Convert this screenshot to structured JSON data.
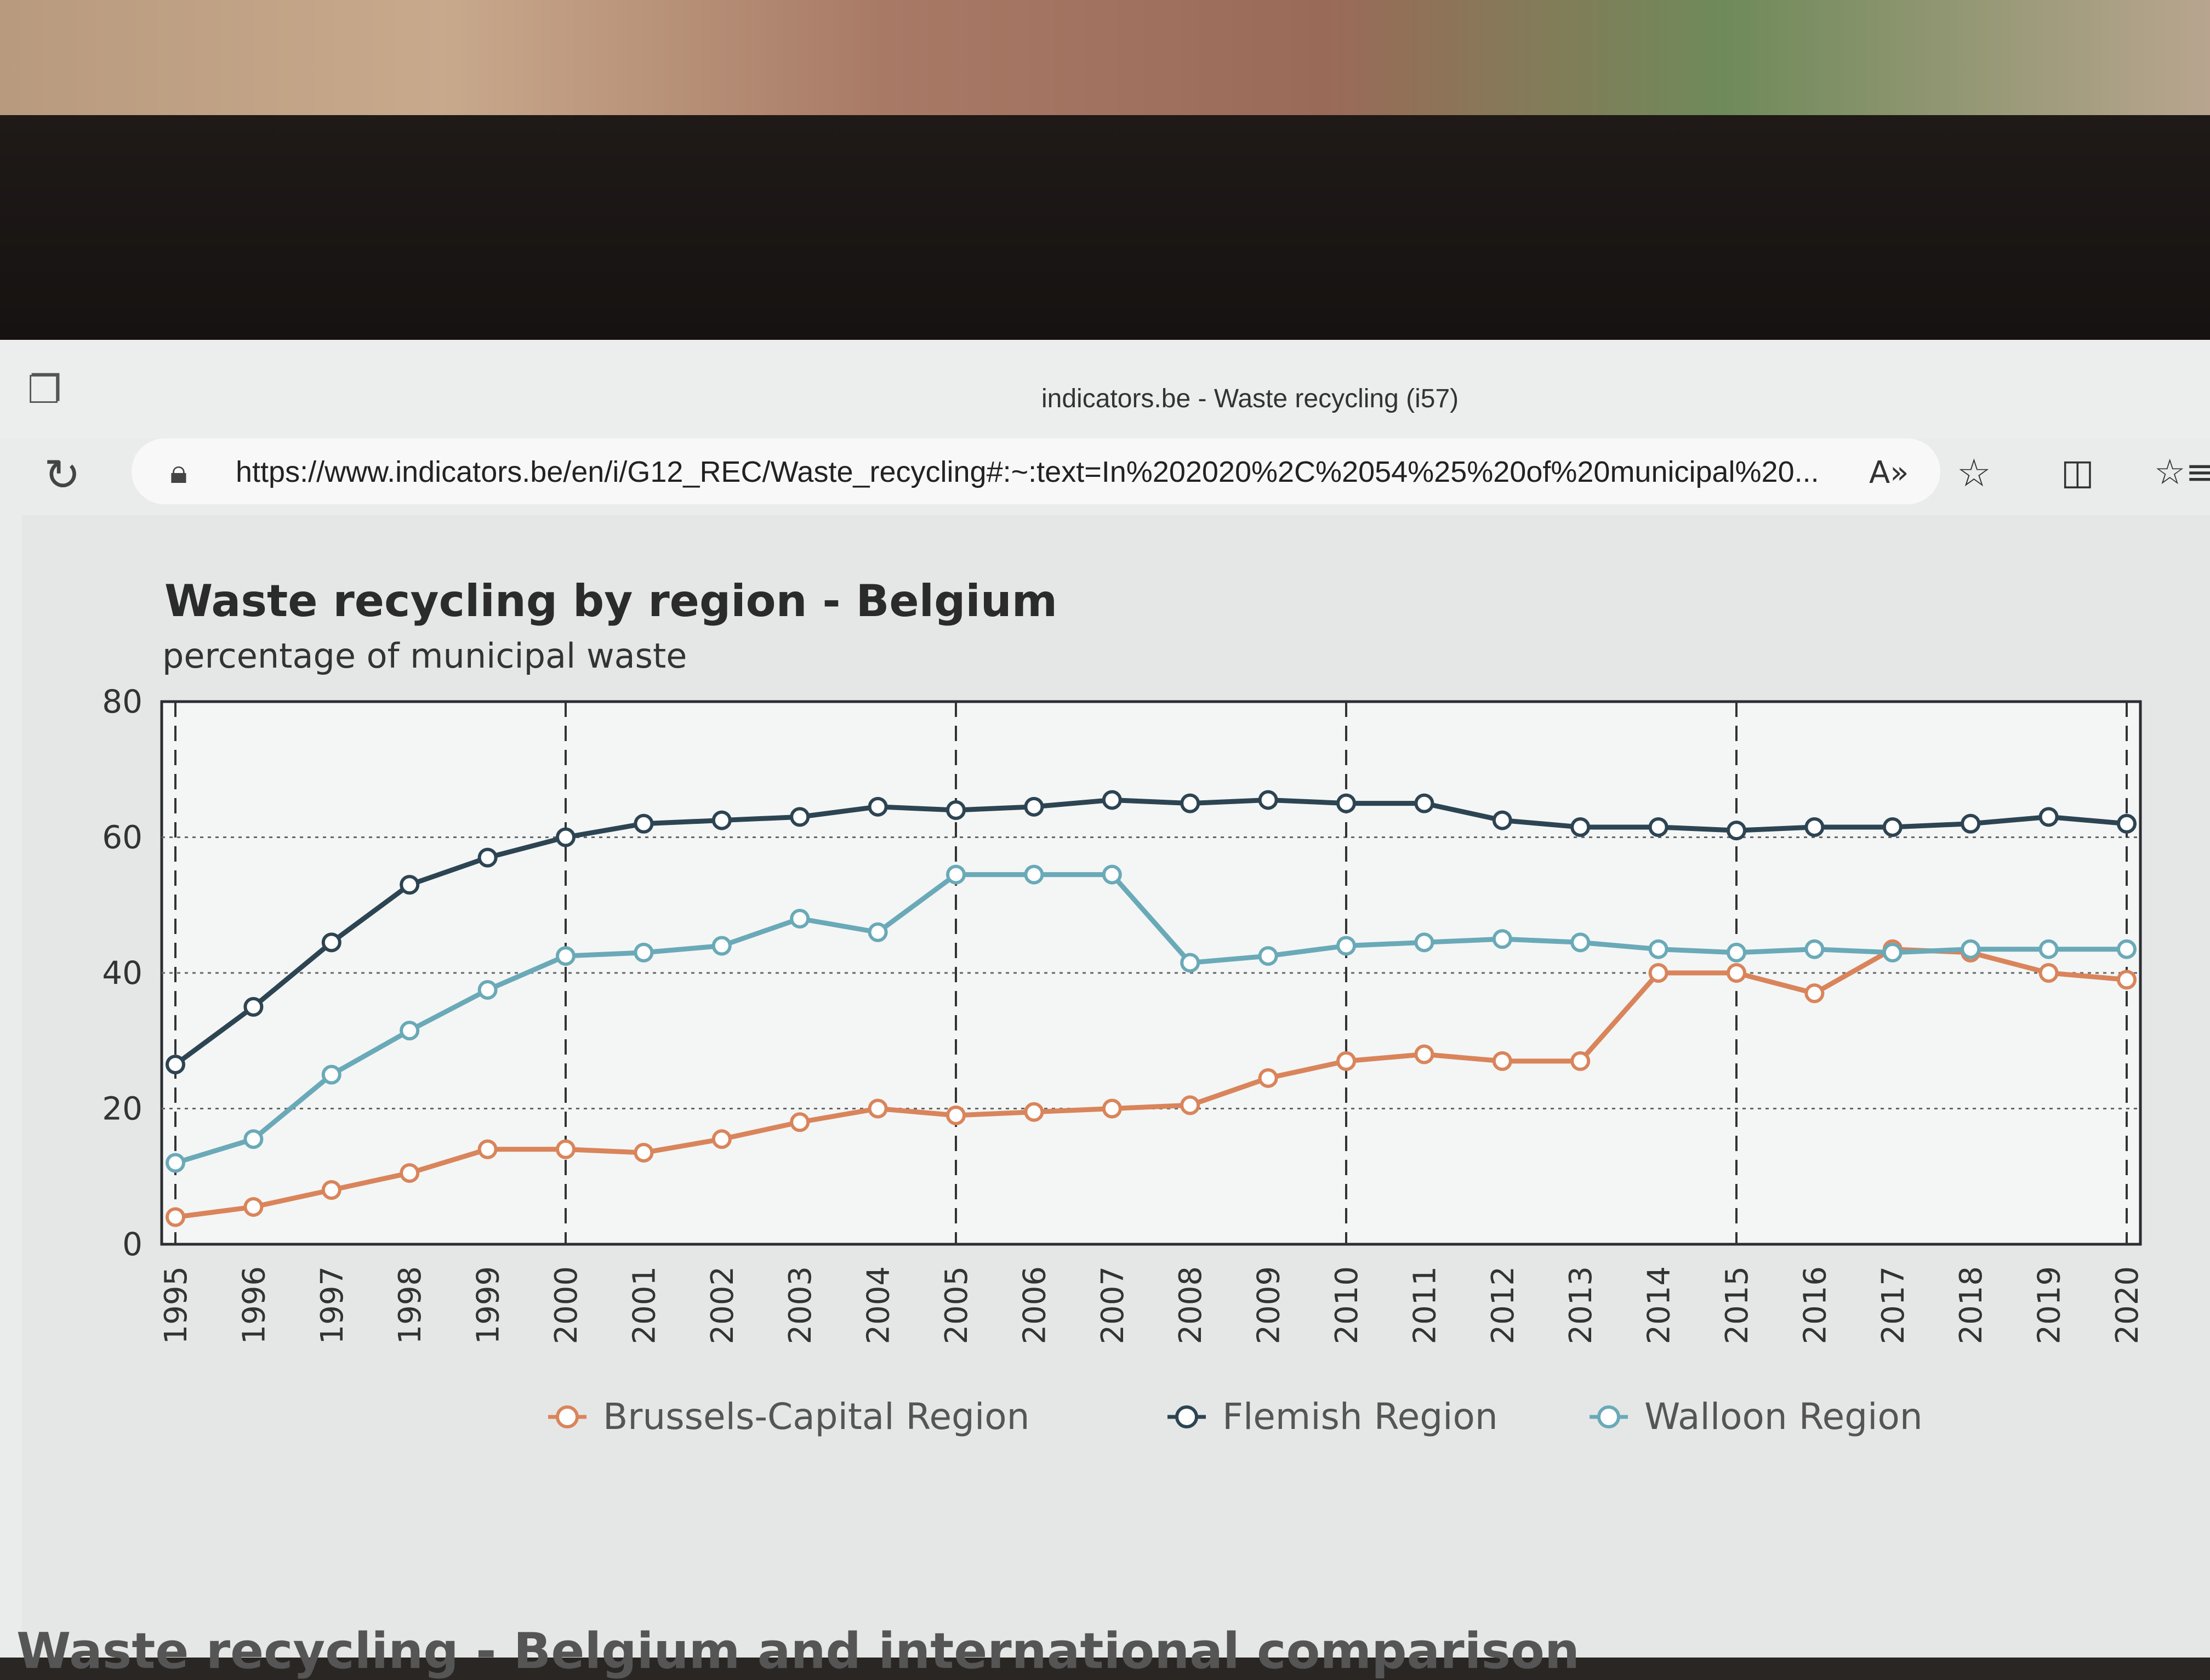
{
  "window": {
    "title": "indicators.be - Waste recycling (i57)"
  },
  "address_bar": {
    "url": "https://www.indicators.be/en/i/G12_REC/Waste_recycling#:~:text=In%202020%2C%2054%25%20of%20municipal%20..."
  },
  "icons": [
    "tabs-icon",
    "site-icon",
    "reload-icon",
    "lock-icon",
    "read-aloud-icon",
    "favorite-star-icon",
    "split-screen-icon",
    "favorites-icon"
  ],
  "page": {
    "bottom_heading": "Waste recycling - Belgium and international comparison"
  },
  "chart_data": {
    "type": "line",
    "title": "Waste recycling by region - Belgium",
    "subtitle": "percentage of municipal waste",
    "xlabel": "",
    "ylabel": "",
    "ylim": [
      0,
      80
    ],
    "yticks": [
      "0",
      "20",
      "40",
      "60",
      "80"
    ],
    "categories": [
      "1995",
      "1996",
      "1997",
      "1998",
      "1999",
      "2000",
      "2001",
      "2002",
      "2003",
      "2004",
      "2005",
      "2006",
      "2007",
      "2008",
      "2009",
      "2010",
      "2011",
      "2012",
      "2013",
      "2014",
      "2015",
      "2016",
      "2017",
      "2018",
      "2019",
      "2020"
    ],
    "legend_position": "bottom",
    "series": [
      {
        "name": "Brussels-Capital Region",
        "color": "#d9845a",
        "values": [
          4,
          5.5,
          8,
          10.5,
          14,
          14,
          13.5,
          15.5,
          18,
          20,
          19,
          19.5,
          20,
          20.5,
          24.5,
          27,
          28,
          27,
          27,
          40,
          40,
          37,
          43.5,
          43,
          40,
          39
        ]
      },
      {
        "name": "Flemish Region",
        "color": "#2d4452",
        "values": [
          26.5,
          35,
          44.5,
          53,
          57,
          60,
          62,
          62.5,
          63,
          64.5,
          64,
          64.5,
          65.5,
          65,
          65.5,
          65,
          65,
          62.5,
          61.5,
          61.5,
          61,
          61.5,
          61.5,
          62,
          63,
          62
        ]
      },
      {
        "name": "Walloon Region",
        "color": "#6aaab8",
        "values": [
          12,
          15.5,
          25,
          31.5,
          37.5,
          42.5,
          43,
          44,
          48,
          46,
          54.5,
          54.5,
          54.5,
          41.5,
          42.5,
          44,
          44.5,
          45,
          44.5,
          43.5,
          43,
          43.5,
          43,
          43.5,
          43.5,
          43.5
        ]
      }
    ]
  }
}
